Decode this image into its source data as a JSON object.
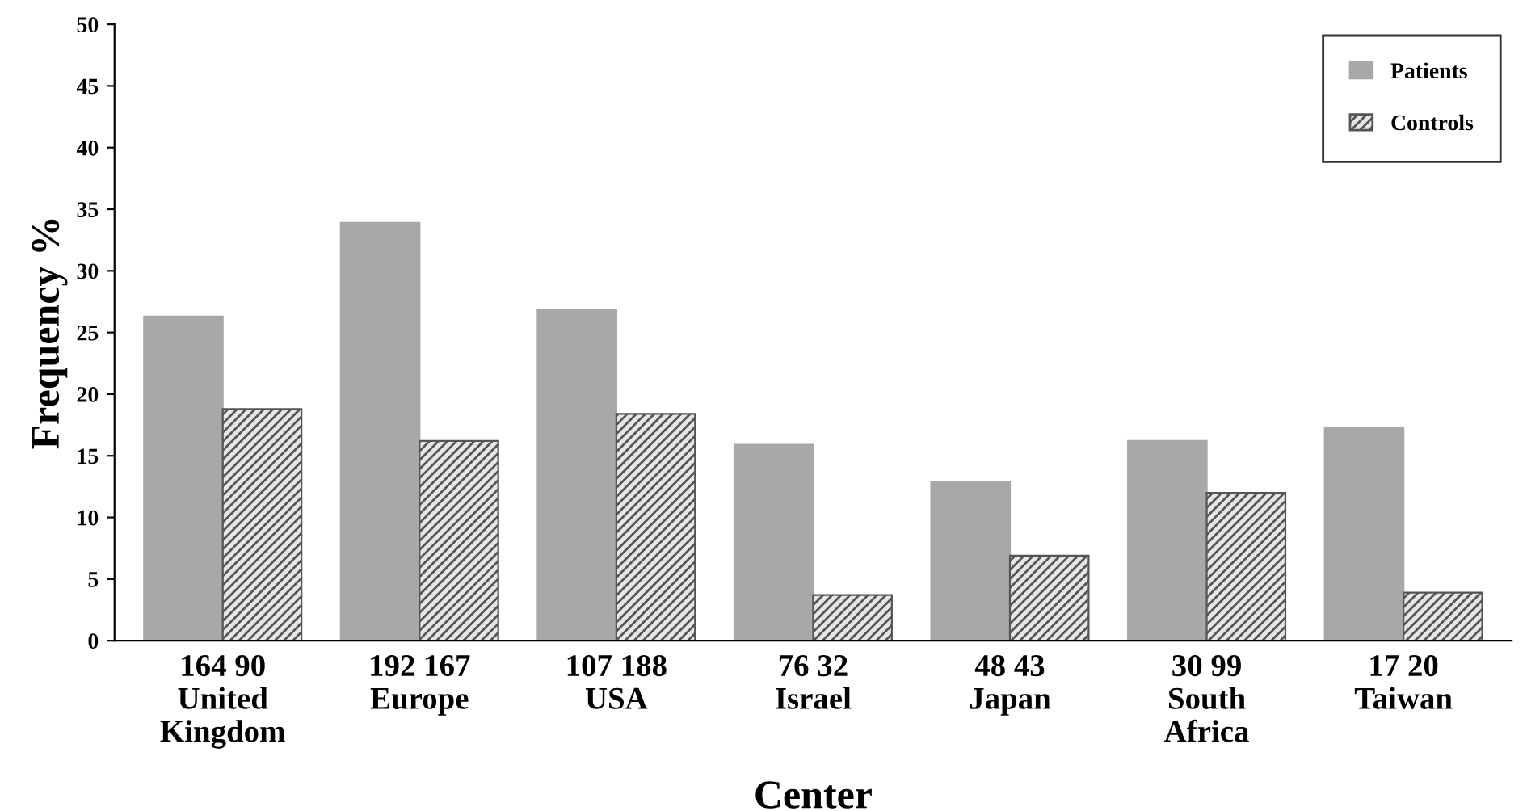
{
  "chart_data": {
    "type": "bar",
    "xlabel": "Center",
    "ylabel": "Frequency %",
    "categories": [
      "164 90\nUnited\nKingdom",
      "192 167\nEurope",
      "107 188\nUSA",
      "76 32\nIsrael",
      "48 43\nJapan",
      "30 99\nSouth\nAfrica",
      "17 20\nTaiwan"
    ],
    "series": [
      {
        "name": "Patients",
        "color": "#a8a8a8",
        "values": [
          26.3,
          33.9,
          26.8,
          15.9,
          12.9,
          16.2,
          17.3
        ]
      },
      {
        "name": "Controls",
        "color": "#555555",
        "values": [
          18.8,
          16.2,
          18.4,
          3.7,
          6.9,
          12.0,
          3.9
        ]
      }
    ],
    "ylim": [
      0,
      50
    ],
    "yticks": [
      0,
      5,
      10,
      15,
      20,
      25,
      30,
      35,
      40,
      45,
      50
    ],
    "grid": false,
    "legend": "top right"
  }
}
